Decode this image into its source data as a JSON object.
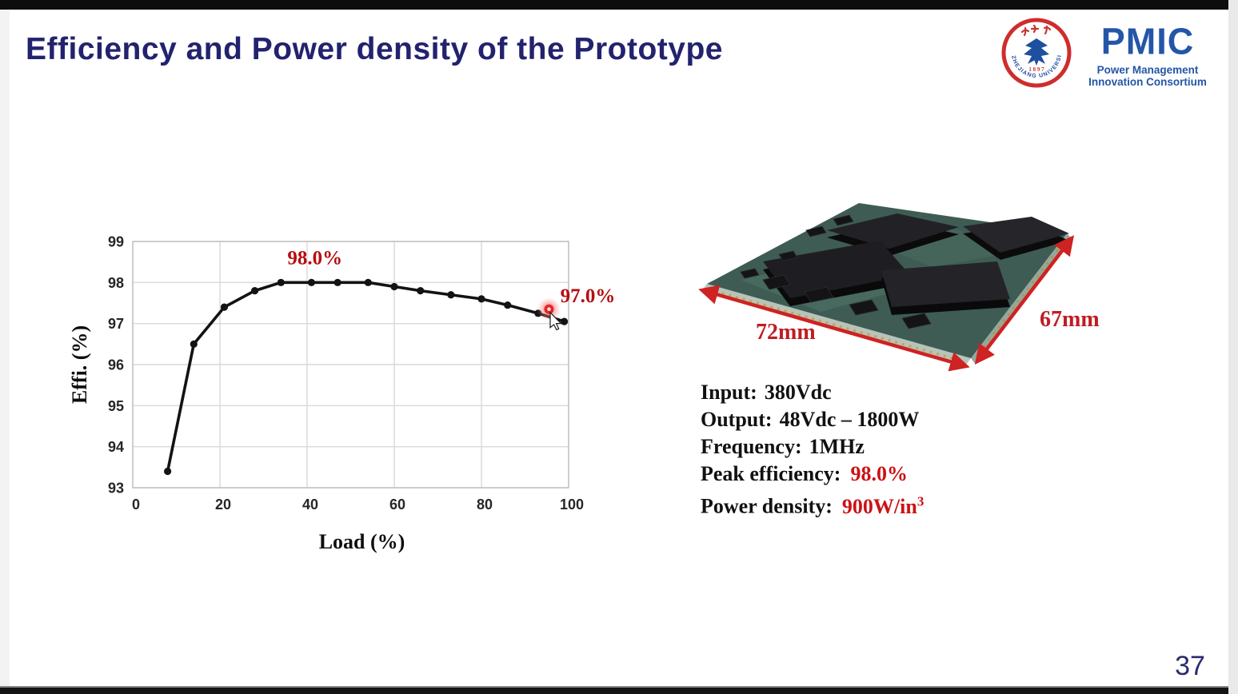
{
  "header": {
    "title": "Efficiency and Power density of the Prototype"
  },
  "logos": {
    "zju": {
      "ring_text": "ZHEJIANG UNIVERSITY",
      "year": "1 8 9 7"
    },
    "pmic": {
      "wordmark": "PMIC",
      "caption_line1": "Power Management",
      "caption_line2": "Innovation Consortium",
      "color": "#2456a8"
    }
  },
  "chart_data": {
    "type": "line",
    "title": "",
    "xlabel": "Load (%)",
    "ylabel": "Effi.  (%)",
    "xlim": [
      0,
      100
    ],
    "ylim": [
      93,
      99
    ],
    "xticks": [
      0,
      20,
      40,
      60,
      80,
      100
    ],
    "yticks": [
      93,
      94,
      95,
      96,
      97,
      98,
      99
    ],
    "grid": true,
    "legend": "none",
    "line_color": "#131313",
    "x": [
      8,
      14,
      21,
      28,
      34,
      41,
      47,
      54,
      60,
      66,
      73,
      80,
      86,
      93,
      99
    ],
    "y": [
      93.4,
      96.5,
      97.4,
      97.8,
      98.0,
      98.0,
      98.0,
      98.0,
      97.9,
      97.8,
      97.7,
      97.6,
      97.45,
      97.25,
      97.05
    ],
    "highlight_point": {
      "x": 95.5,
      "y": 97.35,
      "color": "#e32626"
    },
    "annotations": [
      {
        "text": "98.0%",
        "x": 41.8,
        "y": 98.62,
        "color": "#b50d10"
      },
      {
        "text": "97.0%",
        "x": 104.4,
        "y": 97.69,
        "color": "#b50d10"
      }
    ]
  },
  "prototype": {
    "dim_width": "72mm",
    "dim_depth": "67mm",
    "arrow_color": "#cf2222",
    "board_color": "#3e5c53"
  },
  "specs": {
    "rows": [
      {
        "label": "Input:",
        "value": "380Vdc"
      },
      {
        "label": "Output:",
        "value": "48Vdc – 1800W"
      },
      {
        "label": "Frequency:",
        "value": "1MHz"
      },
      {
        "label": "Peak efficiency:",
        "value": "98.0%"
      },
      {
        "label": "Power density:",
        "value": "900W/in",
        "value_sup": "3"
      }
    ]
  },
  "frame": {
    "page_number": "37"
  }
}
